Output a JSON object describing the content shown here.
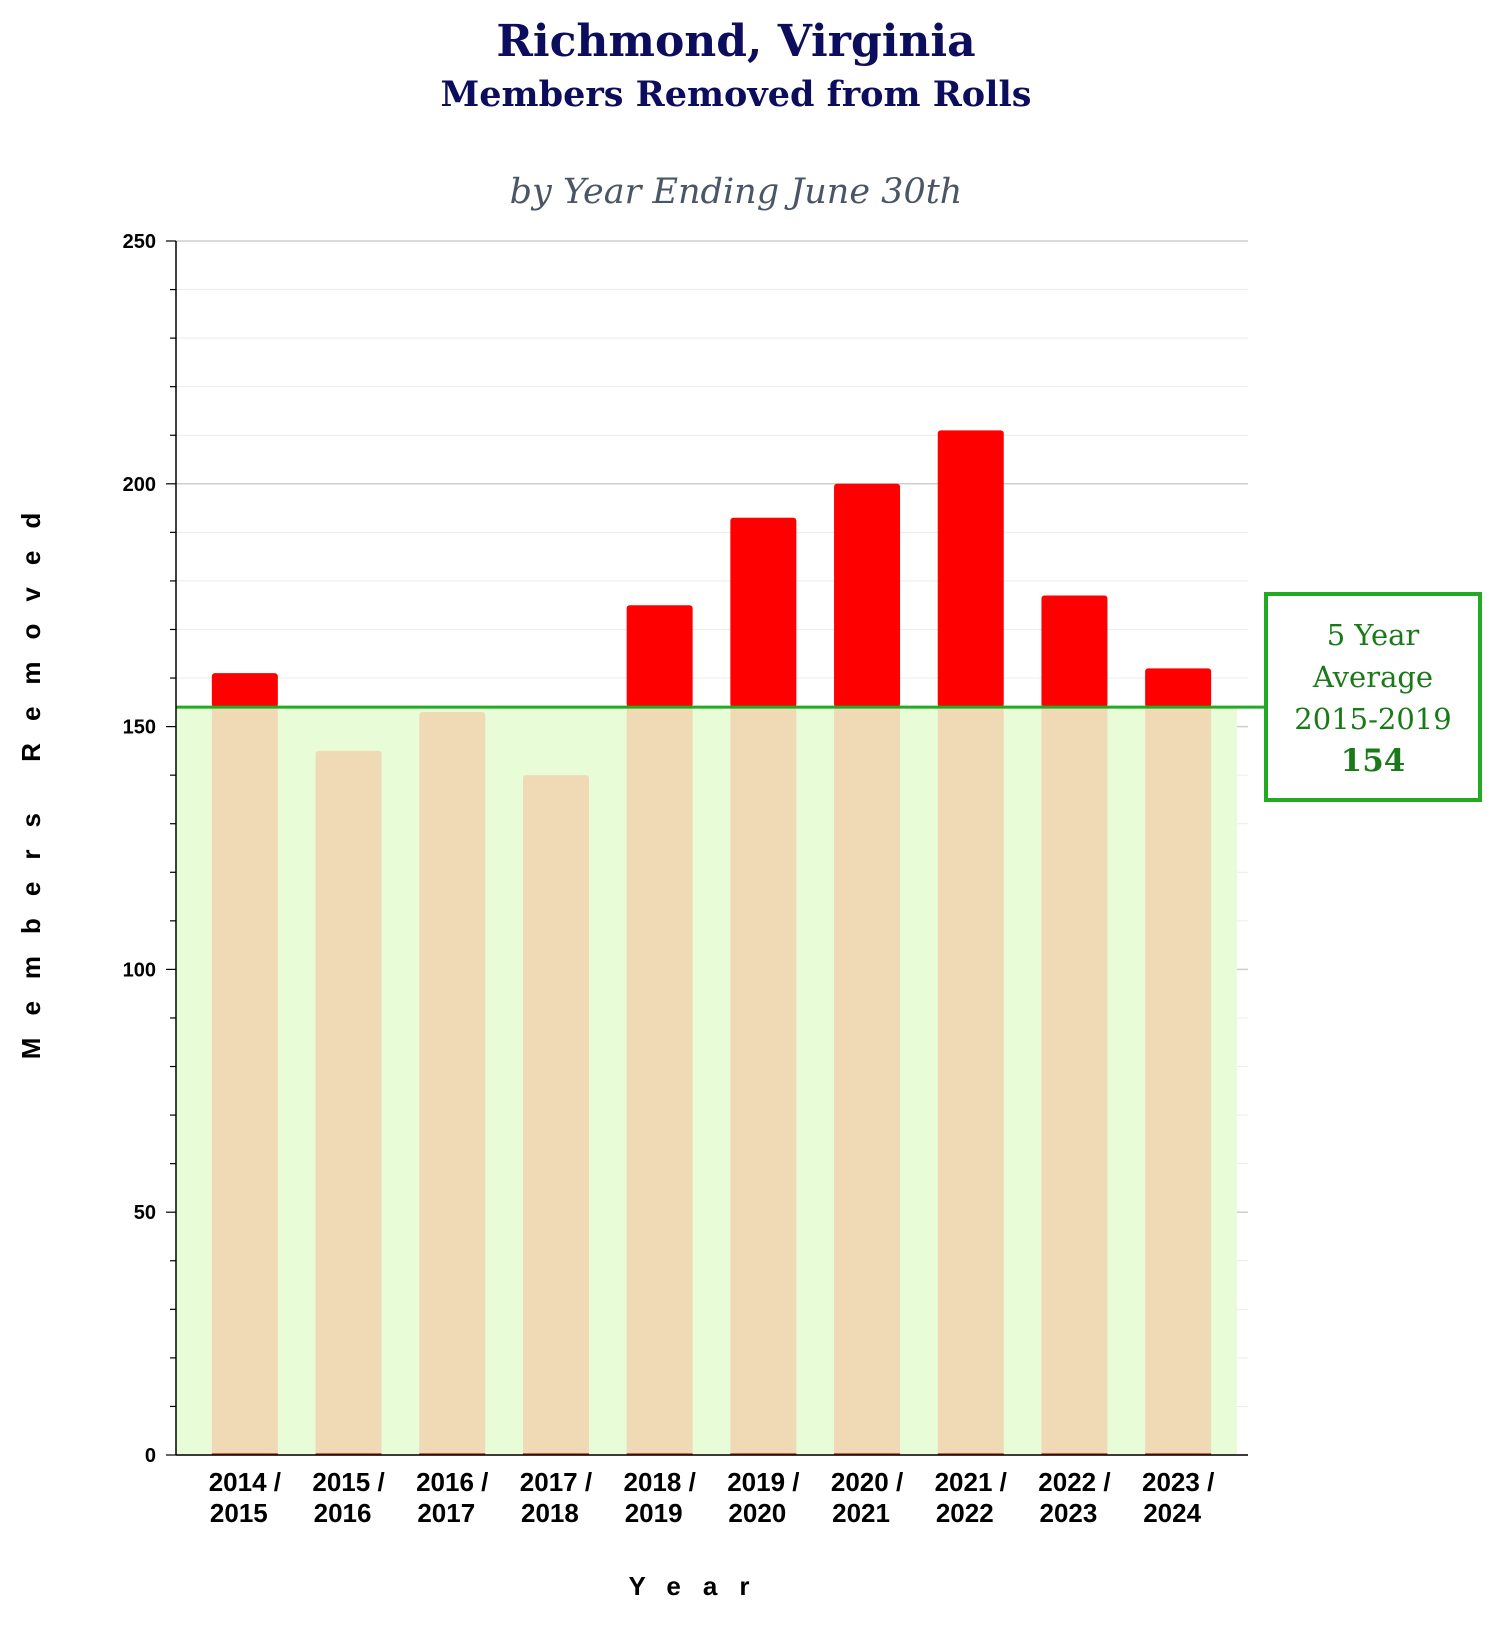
{
  "chart_data": {
    "type": "bar",
    "title": "Richmond, Virginia",
    "subtitle": "Members Removed from Rolls",
    "caption": "by Year Ending June 30th",
    "xlabel": "Year",
    "ylabel": "Members Removed",
    "ylim": [
      0,
      250
    ],
    "yticks": [
      "0",
      "50",
      "100",
      "150",
      "200",
      "250"
    ],
    "categories": [
      [
        "2014 /",
        "2015"
      ],
      [
        "2015 /",
        "2016"
      ],
      [
        "2016 /",
        "2017"
      ],
      [
        "2017 /",
        "2018"
      ],
      [
        "2018 /",
        "2019"
      ],
      [
        "2019 /",
        "2020"
      ],
      [
        "2020 /",
        "2021"
      ],
      [
        "2021 /",
        "2022"
      ],
      [
        "2022 /",
        "2023"
      ],
      [
        "2023 /",
        "2024"
      ]
    ],
    "values": [
      161,
      145,
      153,
      140,
      175,
      193,
      200,
      211,
      177,
      162
    ],
    "grid": true,
    "reference_line": {
      "value": 154,
      "label_lines": [
        "5 Year",
        "Average",
        "2015-2019"
      ],
      "value_label": "154"
    },
    "colors": {
      "above_average": "#ff0000",
      "below_average": "#f0d9b5",
      "average_band": "#e8fcd8",
      "average_line": "#22aa22"
    }
  }
}
